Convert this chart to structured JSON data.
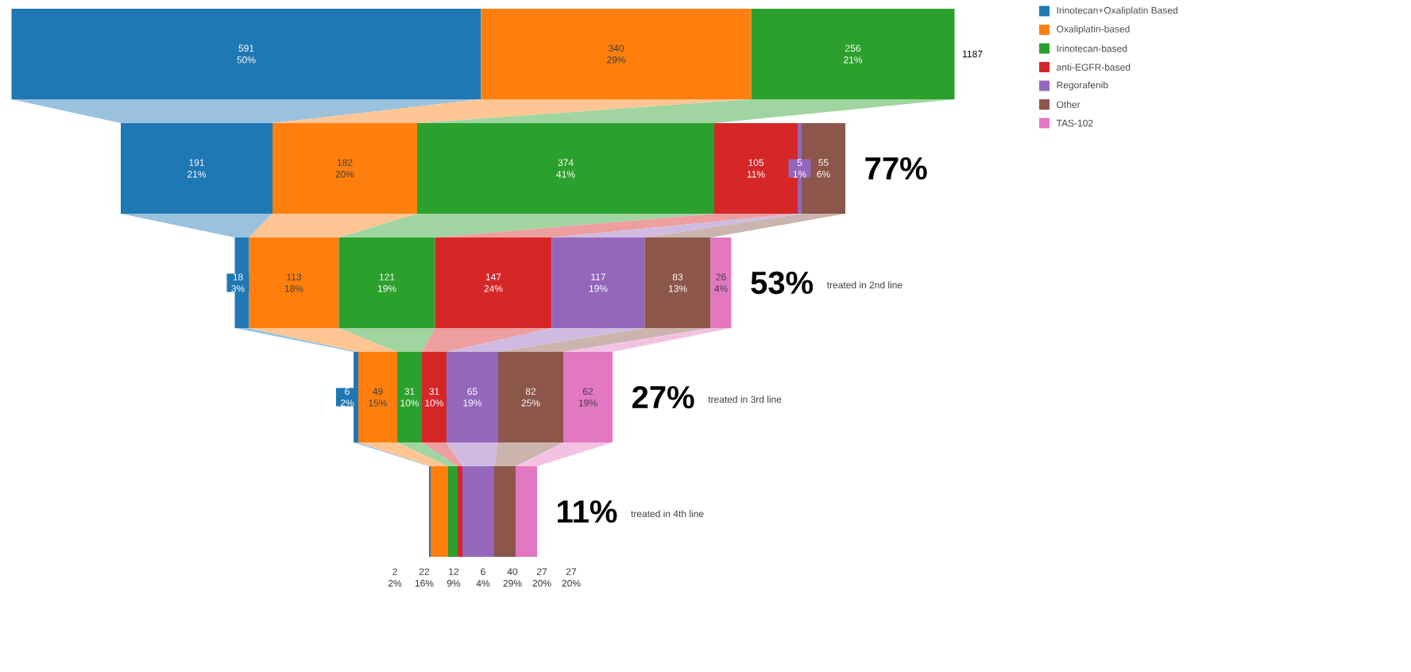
{
  "chart_data": {
    "type": "other",
    "categories": [
      "1187",
      "77%",
      "53%",
      "27%",
      "11%"
    ],
    "legend": "top right",
    "annotations": [
      {
        "text": "treated in 2nd line",
        "y": "53%"
      },
      {
        "text": "treated in 3rd line",
        "y": "27%"
      },
      {
        "text": "treated in 4th line",
        "y": "11%"
      }
    ],
    "series": [
      {
        "name": "Irinotecan+Oxaliplatin Based",
        "color": "#1f77b4",
        "values": [
          591,
          191,
          18,
          6,
          2
        ],
        "value_labels": [
          "591 50%",
          "191 21%",
          "18 3%",
          "6 2%",
          "2 2%"
        ]
      },
      {
        "name": "Oxaliplatin-based",
        "color": "#ff7f0e",
        "values": [
          340,
          182,
          113,
          49,
          22
        ],
        "value_labels": [
          "340 29%",
          "182 20%",
          "113 18%",
          "49 15%",
          "22 16%"
        ]
      },
      {
        "name": "Irinotecan-based",
        "color": "#2ca02c",
        "values": [
          256,
          374,
          121,
          31,
          12
        ],
        "value_labels": [
          "256 21%",
          "374 41%",
          "121 19%",
          "31 10%",
          "12 9%"
        ]
      },
      {
        "name": "anti-EGFR-based",
        "color": "#d62728",
        "values": [
          null,
          105,
          147,
          31,
          6
        ],
        "value_labels": [
          null,
          "105 11%",
          "147 24%",
          "31 10%",
          "6 4%"
        ]
      },
      {
        "name": "Regorafenib",
        "color": "#9467bd",
        "values": [
          null,
          5,
          117,
          65,
          40
        ],
        "value_labels": [
          null,
          "5 1%",
          "117 19%",
          "65 19%",
          "40 29%"
        ]
      },
      {
        "name": "Other",
        "color": "#8c564b",
        "values": [
          null,
          55,
          83,
          82,
          27
        ],
        "value_labels": [
          null,
          "55 6%",
          "83 13%",
          "82 25%",
          "27 20%"
        ]
      },
      {
        "name": "TAS-102",
        "color": "#e377c2",
        "values": [
          null,
          null,
          26,
          62,
          27
        ],
        "value_labels": [
          null,
          null,
          "26 4%",
          "62 19%",
          "27 20%"
        ]
      }
    ]
  }
}
